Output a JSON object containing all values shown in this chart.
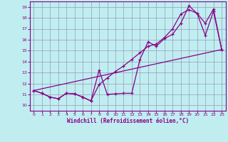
{
  "xlabel": "Windchill (Refroidissement éolien,°C)",
  "xlim": [
    -0.5,
    23.5
  ],
  "ylim": [
    9.5,
    19.5
  ],
  "xticks": [
    0,
    1,
    2,
    3,
    4,
    5,
    6,
    7,
    8,
    9,
    10,
    11,
    12,
    13,
    14,
    15,
    16,
    17,
    18,
    19,
    20,
    21,
    22,
    23
  ],
  "yticks": [
    10,
    11,
    12,
    13,
    14,
    15,
    16,
    17,
    18,
    19
  ],
  "bg_color": "#c0eef0",
  "grid_color": "#9999bb",
  "line_color": "#880088",
  "line1_x": [
    0,
    1,
    2,
    3,
    4,
    5,
    6,
    7,
    8,
    9,
    10,
    11,
    12,
    13,
    14,
    15,
    16,
    17,
    18,
    19,
    20,
    21,
    22,
    23
  ],
  "line1_y": [
    11.35,
    11.1,
    10.75,
    10.6,
    11.1,
    11.05,
    10.75,
    10.4,
    13.2,
    11.0,
    11.05,
    11.1,
    11.1,
    14.2,
    15.8,
    15.4,
    16.1,
    16.5,
    17.5,
    19.1,
    18.4,
    16.4,
    18.6,
    15.1
  ],
  "line2_x": [
    0,
    1,
    2,
    3,
    4,
    5,
    6,
    7,
    8,
    9,
    10,
    11,
    12,
    13,
    14,
    15,
    16,
    17,
    18,
    19,
    20,
    21,
    22,
    23
  ],
  "line2_y": [
    11.35,
    11.1,
    10.75,
    10.6,
    11.1,
    11.05,
    10.75,
    10.4,
    11.9,
    12.5,
    13.1,
    13.6,
    14.2,
    14.8,
    15.4,
    15.6,
    16.2,
    17.0,
    18.35,
    18.75,
    18.4,
    17.5,
    18.8,
    15.1
  ],
  "trend_x": [
    0,
    23
  ],
  "trend_y": [
    11.35,
    15.1
  ]
}
